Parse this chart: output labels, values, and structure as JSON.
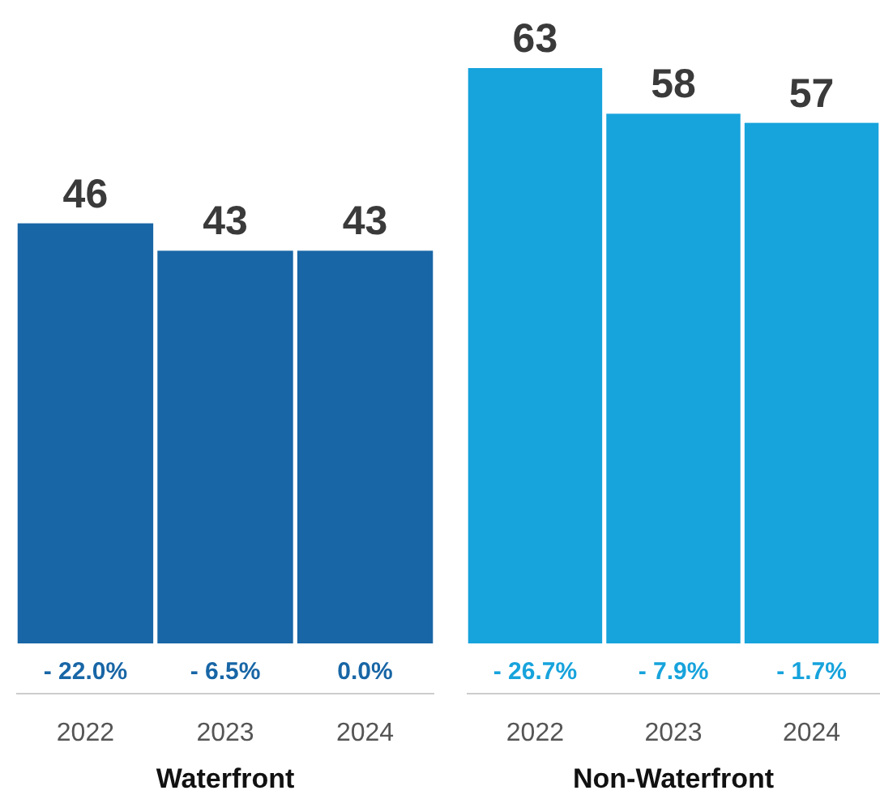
{
  "chart_data": [
    {
      "type": "bar",
      "xlabel": "Waterfront",
      "categories": [
        "2022",
        "2023",
        "2024"
      ],
      "values": [
        46,
        43,
        43
      ],
      "color": "#1866a6",
      "data_labels": true,
      "tick_labels": "x",
      "annotations": [
        "- 22.0%",
        "- 6.5%",
        "0.0%"
      ]
    },
    {
      "type": "bar",
      "xlabel": "Non-Waterfront",
      "categories": [
        "2022",
        "2023",
        "2024"
      ],
      "values": [
        63,
        58,
        57
      ],
      "color": "#17a3dc",
      "data_labels": true,
      "tick_labels": "x",
      "annotations": [
        "- 26.7%",
        "- 7.9%",
        "- 1.7%"
      ]
    }
  ]
}
